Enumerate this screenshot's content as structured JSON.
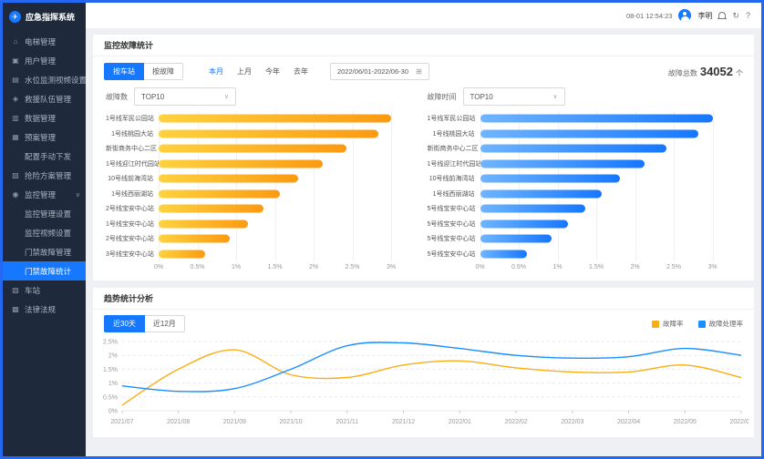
{
  "frame": {
    "accent": "#2468f2"
  },
  "sidebar": {
    "logo": {
      "title": "应急指挥系统",
      "icon": "✈"
    },
    "items": [
      {
        "id": "elevator",
        "label": "电梯管理",
        "icon": "⌂",
        "type": "item"
      },
      {
        "id": "users",
        "label": "用户管理",
        "icon": "▣",
        "type": "item"
      },
      {
        "id": "water-level",
        "label": "水位监测视频设置",
        "icon": "▤",
        "type": "item"
      },
      {
        "id": "rescue-team",
        "label": "救援队伍管理",
        "icon": "◈",
        "type": "item"
      },
      {
        "id": "data-mgmt",
        "label": "数据管理",
        "icon": "▥",
        "type": "item"
      },
      {
        "id": "plan-mgmt",
        "label": "预案管理",
        "icon": "▦",
        "type": "item"
      },
      {
        "id": "config-dispatch",
        "label": "配置手动下发",
        "type": "sub"
      },
      {
        "id": "emergency-plan",
        "label": "抢险方案管理",
        "icon": "▧",
        "type": "item"
      },
      {
        "id": "monitor-mgmt",
        "label": "监控管理",
        "icon": "◉",
        "type": "item",
        "chevron": "∨"
      },
      {
        "id": "monitor-settings",
        "label": "监控管理设置",
        "type": "sub"
      },
      {
        "id": "monitor-video",
        "label": "监控视频设置",
        "type": "sub"
      },
      {
        "id": "door-fault-mgmt",
        "label": "门禁故障管理",
        "type": "sub"
      },
      {
        "id": "door-fault-stats",
        "label": "门禁故障统计",
        "type": "sub",
        "active": true
      },
      {
        "id": "station",
        "label": "车站",
        "icon": "▨",
        "type": "item"
      },
      {
        "id": "laws",
        "label": "法律法规",
        "icon": "▩",
        "type": "item"
      }
    ]
  },
  "header": {
    "time": "08-01 12:54:23",
    "user": "李明",
    "logout_icon": "↻",
    "help_icon": "?"
  },
  "fault_panel": {
    "title": "监控故障统计",
    "view_toggle": [
      {
        "label": "按车站",
        "active": true
      },
      {
        "label": "按故障",
        "active": false
      }
    ],
    "quick_ranges": [
      {
        "label": "本月",
        "active": true
      },
      {
        "label": "上月",
        "active": false
      },
      {
        "label": "今年",
        "active": false
      },
      {
        "label": "去年",
        "active": false
      }
    ],
    "date_range": "2022/06/01-2022/06-30",
    "calendar_icon": "⊞",
    "total_label": "故障总数",
    "total_value": "34052",
    "total_unit": "个"
  },
  "trend_panel": {
    "title": "趋势统计分析",
    "range_toggle": [
      {
        "label": "近30天",
        "active": true
      },
      {
        "label": "近12月",
        "active": false
      }
    ]
  },
  "chart_data": [
    {
      "type": "bar",
      "orientation": "horizontal",
      "title": "故障数",
      "top_label": "TOP10",
      "categories": [
        "1号线军民公园站",
        "1号线桃园大站",
        "新街商务中心二区",
        "1号线迎江时代园站",
        "10号线前海湾站",
        "1号线西丽湖站",
        "2号线宝安中心站",
        "1号线宝安中心站",
        "2号线宝安中心站",
        "3号线宝安中心站"
      ],
      "values": [
        3.0,
        2.83,
        2.42,
        2.12,
        1.8,
        1.57,
        1.35,
        1.15,
        0.92,
        0.6
      ],
      "unit": "%",
      "xlim": [
        0,
        3.3
      ],
      "xticks": [
        "0%",
        "0.5%",
        "1%",
        "1.5%",
        "2%",
        "2.5%",
        "3%"
      ],
      "bar_gradient": [
        "#ffd23e",
        "#fb9a12"
      ]
    },
    {
      "type": "bar",
      "orientation": "horizontal",
      "title": "故障时间",
      "top_label": "TOP10",
      "categories": [
        "1号线军民公园站",
        "1号线桃园大站",
        "新街商务中心二区",
        "1号线迎江时代园站",
        "10号线前海湾站",
        "1号线西丽湖站",
        "5号线宝安中心站",
        "5号线宝安中心站",
        "5号线宝安中心站",
        "5号线宝安中心站"
      ],
      "values": [
        3.0,
        2.82,
        2.41,
        2.12,
        1.8,
        1.57,
        1.36,
        1.14,
        0.92,
        0.61
      ],
      "unit": "%",
      "xlim": [
        0,
        3.3
      ],
      "xticks": [
        "0%",
        "0.5%",
        "1%",
        "1.5%",
        "2%",
        "2.5%",
        "3%"
      ],
      "bar_gradient": [
        "#6fb5ff",
        "#1677ff"
      ]
    },
    {
      "type": "line",
      "title": "趋势统计分析",
      "x": [
        "2021/07",
        "2021/08",
        "2021/09",
        "2021/10",
        "2021/11",
        "2021/12",
        "2022/01",
        "2022/02",
        "2022/03",
        "2022/04",
        "2022/05",
        "2022/06"
      ],
      "series": [
        {
          "name": "故障率",
          "color": "#faad14",
          "values": [
            0.2,
            1.5,
            2.2,
            1.3,
            1.2,
            1.65,
            1.8,
            1.55,
            1.4,
            1.4,
            1.65,
            1.2
          ]
        },
        {
          "name": "故障处理率",
          "color": "#1890ff",
          "values": [
            0.9,
            0.7,
            0.8,
            1.5,
            2.35,
            2.45,
            2.25,
            2.0,
            1.9,
            1.95,
            2.25,
            2.0
          ]
        }
      ],
      "yticks": [
        "0%",
        "0.5%",
        "1%",
        "1.5%",
        "2%",
        "2.5%"
      ],
      "ylim": [
        0,
        2.5
      ],
      "grid": "dashed",
      "legend_position": "top-right"
    }
  ]
}
